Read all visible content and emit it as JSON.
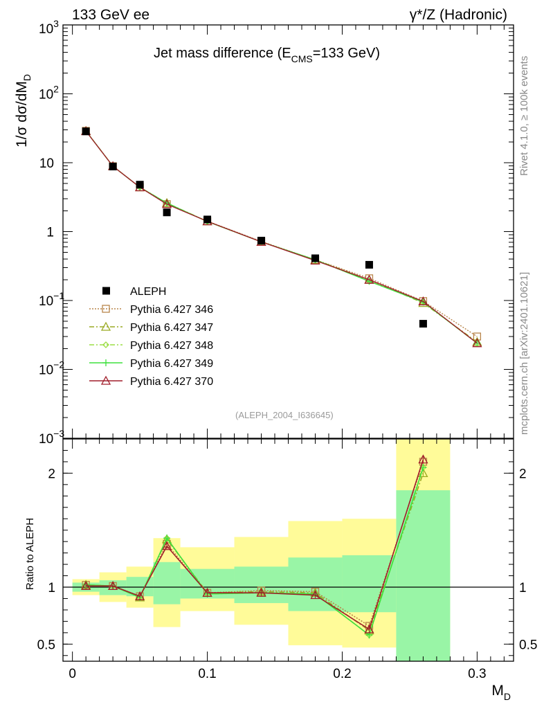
{
  "header": {
    "left": "133 GeV ee",
    "right": "γ*/Z (Hadronic)"
  },
  "side_labels": {
    "rivet": "Rivet 4.1.0, ≥ 100k events",
    "mcplots": "mcplots.cern.ch [arXiv:2401.10621]"
  },
  "chart_data": [
    {
      "type": "line",
      "panel": "main",
      "title_main": "Jet mass difference (E",
      "title_sub": "CMS",
      "title_tail": "=133 GeV)",
      "ylabel": "1/σ  dσ/dM",
      "ylabel_sub": "D",
      "yscale": "log",
      "ylim": [
        0.001,
        1000
      ],
      "xlim": [
        -0.007,
        0.327
      ],
      "y_ticks": [
        {
          "value": 1000,
          "base": "10",
          "exp": "3"
        },
        {
          "value": 100,
          "base": "10",
          "exp": "2"
        },
        {
          "value": 10,
          "base": "10",
          "exp": ""
        },
        {
          "value": 1,
          "base": "1",
          "exp": ""
        },
        {
          "value": 0.1,
          "base": "10",
          "exp": "−1"
        },
        {
          "value": 0.01,
          "base": "10",
          "exp": "−2"
        },
        {
          "value": 0.001,
          "base": "10",
          "exp": "−3"
        }
      ],
      "watermark": "(ALEPH_2004_I636645)",
      "data": {
        "name": "ALEPH",
        "x": [
          0.01,
          0.03,
          0.05,
          0.07,
          0.1,
          0.14,
          0.18,
          0.22,
          0.26
        ],
        "y": [
          28.5,
          8.8,
          4.8,
          1.9,
          1.5,
          0.74,
          0.41,
          0.33,
          0.046
        ]
      },
      "series": [
        {
          "name": "Pythia 6.427 346",
          "color": "#b8854a",
          "dash": "2,2",
          "marker": "square",
          "x": [
            0.01,
            0.03,
            0.05,
            0.07,
            0.1,
            0.14,
            0.18,
            0.22,
            0.26,
            0.3
          ],
          "y": [
            29.0,
            8.9,
            4.4,
            2.5,
            1.42,
            0.72,
            0.39,
            0.21,
            0.098,
            0.03
          ]
        },
        {
          "name": "Pythia 6.427 347",
          "color": "#9aaa22",
          "dash": "7,3,2,3",
          "marker": "triangle",
          "x": [
            0.01,
            0.03,
            0.05,
            0.07,
            0.1,
            0.14,
            0.18,
            0.22,
            0.26,
            0.3
          ],
          "y": [
            28.9,
            8.9,
            4.4,
            2.6,
            1.41,
            0.71,
            0.39,
            0.2,
            0.092,
            0.025
          ]
        },
        {
          "name": "Pythia 6.427 348",
          "color": "#9bde44",
          "dash": "7,3,2,3",
          "marker": "diamond",
          "x": [
            0.01,
            0.03,
            0.05,
            0.07,
            0.1,
            0.14,
            0.18,
            0.22,
            0.26,
            0.3
          ],
          "y": [
            28.9,
            8.9,
            4.4,
            2.6,
            1.4,
            0.71,
            0.39,
            0.19,
            0.095,
            0.024
          ]
        },
        {
          "name": "Pythia 6.427 349",
          "color": "#3de03d",
          "dash": "",
          "marker": "cross",
          "x": [
            0.01,
            0.03,
            0.05,
            0.07,
            0.1,
            0.14,
            0.18,
            0.22,
            0.26,
            0.3
          ],
          "y": [
            28.9,
            8.9,
            4.4,
            2.6,
            1.4,
            0.71,
            0.39,
            0.19,
            0.095,
            0.024
          ]
        },
        {
          "name": "Pythia 6.427 370",
          "color": "#a01d2a",
          "dash": "",
          "marker": "triangle",
          "x": [
            0.01,
            0.03,
            0.05,
            0.07,
            0.1,
            0.14,
            0.18,
            0.22,
            0.26,
            0.3
          ],
          "y": [
            28.7,
            8.9,
            4.4,
            2.5,
            1.41,
            0.71,
            0.38,
            0.2,
            0.097,
            0.024
          ]
        }
      ]
    },
    {
      "type": "line",
      "panel": "ratio",
      "ylabel": "Ratio to ALEPH",
      "xlabel": "M",
      "xlabel_sub": "D",
      "ylim": [
        0.35,
        2.3
      ],
      "xlim": [
        -0.007,
        0.327
      ],
      "x_ticks": [
        0,
        0.1,
        0.2,
        0.3
      ],
      "x_tick_labels": [
        "0",
        "0.1",
        "0.2",
        "0.3"
      ],
      "y_ticks": [
        0.5,
        1,
        2
      ],
      "y_tick_labels": [
        "0.5",
        "1",
        "2"
      ],
      "bands": [
        {
          "x0": 0.0,
          "x1": 0.02,
          "inner": [
            0.96,
            1.04
          ],
          "outer": [
            0.93,
            1.07
          ]
        },
        {
          "x0": 0.02,
          "x1": 0.04,
          "inner": [
            0.93,
            1.06
          ],
          "outer": [
            0.87,
            1.13
          ]
        },
        {
          "x0": 0.04,
          "x1": 0.06,
          "inner": [
            0.92,
            1.09
          ],
          "outer": [
            0.82,
            1.18
          ]
        },
        {
          "x0": 0.06,
          "x1": 0.08,
          "inner": [
            0.85,
            1.22
          ],
          "outer": [
            0.65,
            1.43
          ]
        },
        {
          "x0": 0.08,
          "x1": 0.12,
          "inner": [
            0.9,
            1.16
          ],
          "outer": [
            0.79,
            1.35
          ]
        },
        {
          "x0": 0.12,
          "x1": 0.16,
          "inner": [
            0.86,
            1.18
          ],
          "outer": [
            0.67,
            1.44
          ]
        },
        {
          "x0": 0.16,
          "x1": 0.2,
          "inner": [
            0.79,
            1.26
          ],
          "outer": [
            0.49,
            1.58
          ]
        },
        {
          "x0": 0.2,
          "x1": 0.24,
          "inner": [
            0.78,
            1.28
          ],
          "outer": [
            0.47,
            1.6
          ]
        },
        {
          "x0": 0.24,
          "x1": 0.28,
          "inner": [
            0.35,
            1.85
          ],
          "outer": [
            0.35,
            2.3
          ]
        }
      ],
      "series": [
        {
          "name": "Pythia 6.427 346",
          "x": [
            0.01,
            0.03,
            0.05,
            0.07,
            0.1,
            0.14,
            0.18,
            0.22,
            0.26
          ],
          "y": [
            1.02,
            1.01,
            0.92,
            1.38,
            0.95,
            0.97,
            0.96,
            0.66,
            2.1
          ]
        },
        {
          "name": "Pythia 6.427 347",
          "x": [
            0.01,
            0.03,
            0.05,
            0.07,
            0.1,
            0.14,
            0.18,
            0.22,
            0.26
          ],
          "y": [
            1.02,
            1.01,
            0.91,
            1.42,
            0.95,
            0.96,
            0.95,
            0.62,
            2.0
          ]
        },
        {
          "name": "Pythia 6.427 348",
          "x": [
            0.01,
            0.03,
            0.05,
            0.07,
            0.1,
            0.14,
            0.18,
            0.22,
            0.26
          ],
          "y": [
            1.02,
            1.01,
            0.91,
            1.43,
            0.94,
            0.95,
            0.94,
            0.58,
            2.05
          ]
        },
        {
          "name": "Pythia 6.427 349",
          "x": [
            0.01,
            0.03,
            0.05,
            0.07,
            0.1,
            0.14,
            0.18,
            0.22,
            0.26
          ],
          "y": [
            1.02,
            1.01,
            0.91,
            1.43,
            0.94,
            0.95,
            0.94,
            0.58,
            2.05
          ]
        },
        {
          "name": "Pythia 6.427 370",
          "x": [
            0.01,
            0.03,
            0.05,
            0.07,
            0.1,
            0.14,
            0.18,
            0.22,
            0.26
          ],
          "y": [
            1.01,
            1.01,
            0.92,
            1.36,
            0.95,
            0.95,
            0.93,
            0.63,
            2.12
          ]
        }
      ]
    }
  ]
}
